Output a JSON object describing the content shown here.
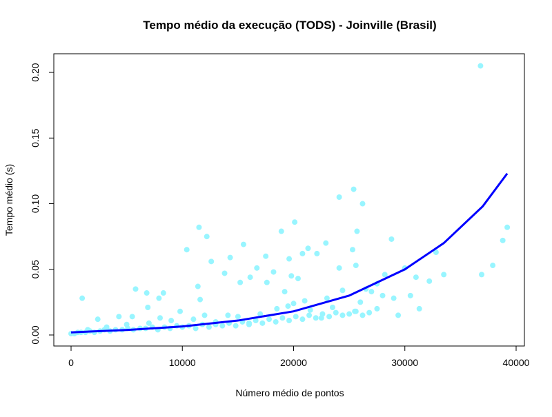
{
  "chart_data": {
    "type": "scatter",
    "title": "Tempo médio da execução (TODS) - Joinville (Brasil)",
    "x_label": "Número médio de pontos",
    "y_label": "Tempo médio (s)",
    "xlim": [
      -1550,
      40744
    ],
    "ylim": [
      -0.0084,
      0.2142
    ],
    "xticks": [
      0,
      10000,
      20000,
      30000,
      40000
    ],
    "yticks": [
      {
        "value": 0,
        "label": "0.00"
      },
      0.05,
      {
        "value": 0.1,
        "label": "0.10"
      },
      0.15,
      {
        "value": 0.2,
        "label": "0.20"
      }
    ],
    "series": [
      {
        "type": "scatter",
        "color": "#98F5FF",
        "x": [
          36800,
          39200,
          38800,
          37900,
          36900,
          25400,
          24100,
          26200,
          11500,
          12200,
          20100,
          18900,
          25700,
          28800,
          10400,
          14300,
          15500,
          22900,
          21300,
          22100,
          12600,
          25300,
          17500,
          19600,
          20800,
          24100,
          25600,
          30000,
          32800,
          31000,
          32200,
          33500,
          30500,
          31300,
          29400,
          1000,
          5800,
          6800,
          8300,
          7900,
          11400,
          11600,
          13800,
          15200,
          16100,
          16700,
          18200,
          19800,
          20400,
          17600,
          19200,
          21000,
          23000,
          24400,
          26000,
          27000,
          28200,
          27500,
          26500,
          28000,
          29000,
          14100,
          9800,
          6900,
          2400,
          4300,
          5500,
          0,
          300,
          600,
          900,
          1300,
          1700,
          2100,
          2600,
          3000,
          3500,
          4000,
          4600,
          5100,
          5600,
          6200,
          6700,
          7300,
          7800,
          8400,
          8900,
          9500,
          10000,
          10600,
          11200,
          11800,
          12400,
          13000,
          13600,
          14200,
          14800,
          15400,
          16000,
          16600,
          17200,
          17800,
          18400,
          19000,
          19600,
          20200,
          20800,
          21400,
          22000,
          22600,
          23200,
          23800,
          24400,
          25000,
          25600,
          26200,
          26800,
          1500,
          3200,
          5000,
          7000,
          9000,
          11000,
          13000,
          15000,
          17000,
          18500,
          19500,
          21500,
          23500,
          25500,
          27500,
          8000,
          12000,
          16000,
          20000,
          22500
        ],
        "values": [
          0.205,
          0.082,
          0.072,
          0.053,
          0.046,
          0.111,
          0.105,
          0.1,
          0.082,
          0.075,
          0.086,
          0.079,
          0.079,
          0.073,
          0.065,
          0.059,
          0.069,
          0.07,
          0.066,
          0.062,
          0.056,
          0.065,
          0.06,
          0.058,
          0.062,
          0.051,
          0.053,
          0.051,
          0.063,
          0.044,
          0.041,
          0.046,
          0.03,
          0.02,
          0.015,
          0.028,
          0.035,
          0.032,
          0.032,
          0.028,
          0.037,
          0.027,
          0.047,
          0.04,
          0.044,
          0.051,
          0.048,
          0.045,
          0.043,
          0.04,
          0.033,
          0.026,
          0.028,
          0.034,
          0.025,
          0.033,
          0.046,
          0.039,
          0.035,
          0.03,
          0.028,
          0.015,
          0.018,
          0.021,
          0.012,
          0.014,
          0.014,
          0.001,
          0.001,
          0.002,
          0.002,
          0.002,
          0.003,
          0.002,
          0.003,
          0.004,
          0.003,
          0.004,
          0.004,
          0.005,
          0.004,
          0.005,
          0.005,
          0.006,
          0.004,
          0.006,
          0.005,
          0.007,
          0.006,
          0.007,
          0.005,
          0.008,
          0.006,
          0.008,
          0.007,
          0.009,
          0.007,
          0.01,
          0.008,
          0.011,
          0.009,
          0.012,
          0.01,
          0.013,
          0.011,
          0.014,
          0.012,
          0.015,
          0.013,
          0.016,
          0.014,
          0.017,
          0.015,
          0.016,
          0.018,
          0.015,
          0.017,
          0.004,
          0.006,
          0.008,
          0.009,
          0.011,
          0.012,
          0.01,
          0.014,
          0.016,
          0.02,
          0.022,
          0.019,
          0.021,
          0.018,
          0.02,
          0.013,
          0.015,
          0.009,
          0.024,
          0.013
        ]
      },
      {
        "type": "line",
        "color": "#0000FF",
        "x": [
          0,
          5000,
          10000,
          15000,
          20000,
          25000,
          30000,
          33500,
          37000,
          39200
        ],
        "values": [
          0.002,
          0.0038,
          0.0065,
          0.011,
          0.018,
          0.03,
          0.05,
          0.07,
          0.098,
          0.123
        ]
      }
    ]
  }
}
